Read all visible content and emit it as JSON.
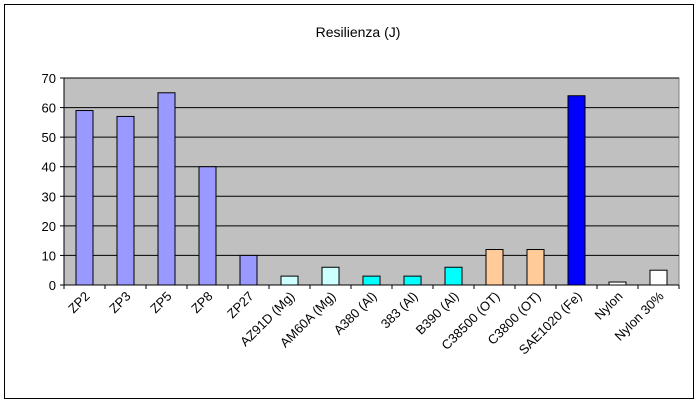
{
  "chart_data": {
    "type": "bar",
    "title": "Resilienza (J)",
    "xlabel": "",
    "ylabel": "",
    "ylim": [
      0,
      70
    ],
    "yticks": [
      0,
      10,
      20,
      30,
      40,
      50,
      60,
      70
    ],
    "grid": true,
    "legend": "none",
    "categories": [
      "ZP2",
      "ZP3",
      "ZP5",
      "ZP8",
      "ZP27",
      "AZ91D (Mg)",
      "AM60A (Mg)",
      "A380 (Al)",
      "383 (Al)",
      "B390 (Al)",
      "C38500 (OT)",
      "C3800 (OT)",
      "SAE1020 (Fe)",
      "Nylon",
      "Nylon 30%"
    ],
    "values": [
      59,
      57,
      65,
      40,
      10,
      3,
      6,
      3,
      3,
      6,
      12,
      12,
      64,
      1,
      5
    ],
    "bar_colors": [
      "#9999ff",
      "#9999ff",
      "#9999ff",
      "#9999ff",
      "#9999ff",
      "#ccffff",
      "#ccffff",
      "#00ffff",
      "#00ffff",
      "#00ffff",
      "#ffcc99",
      "#ffcc99",
      "#0000ff",
      "#ffffff",
      "#ffffff"
    ],
    "plot_background": "#c0c0c0",
    "gridline_color": "#000000"
  }
}
